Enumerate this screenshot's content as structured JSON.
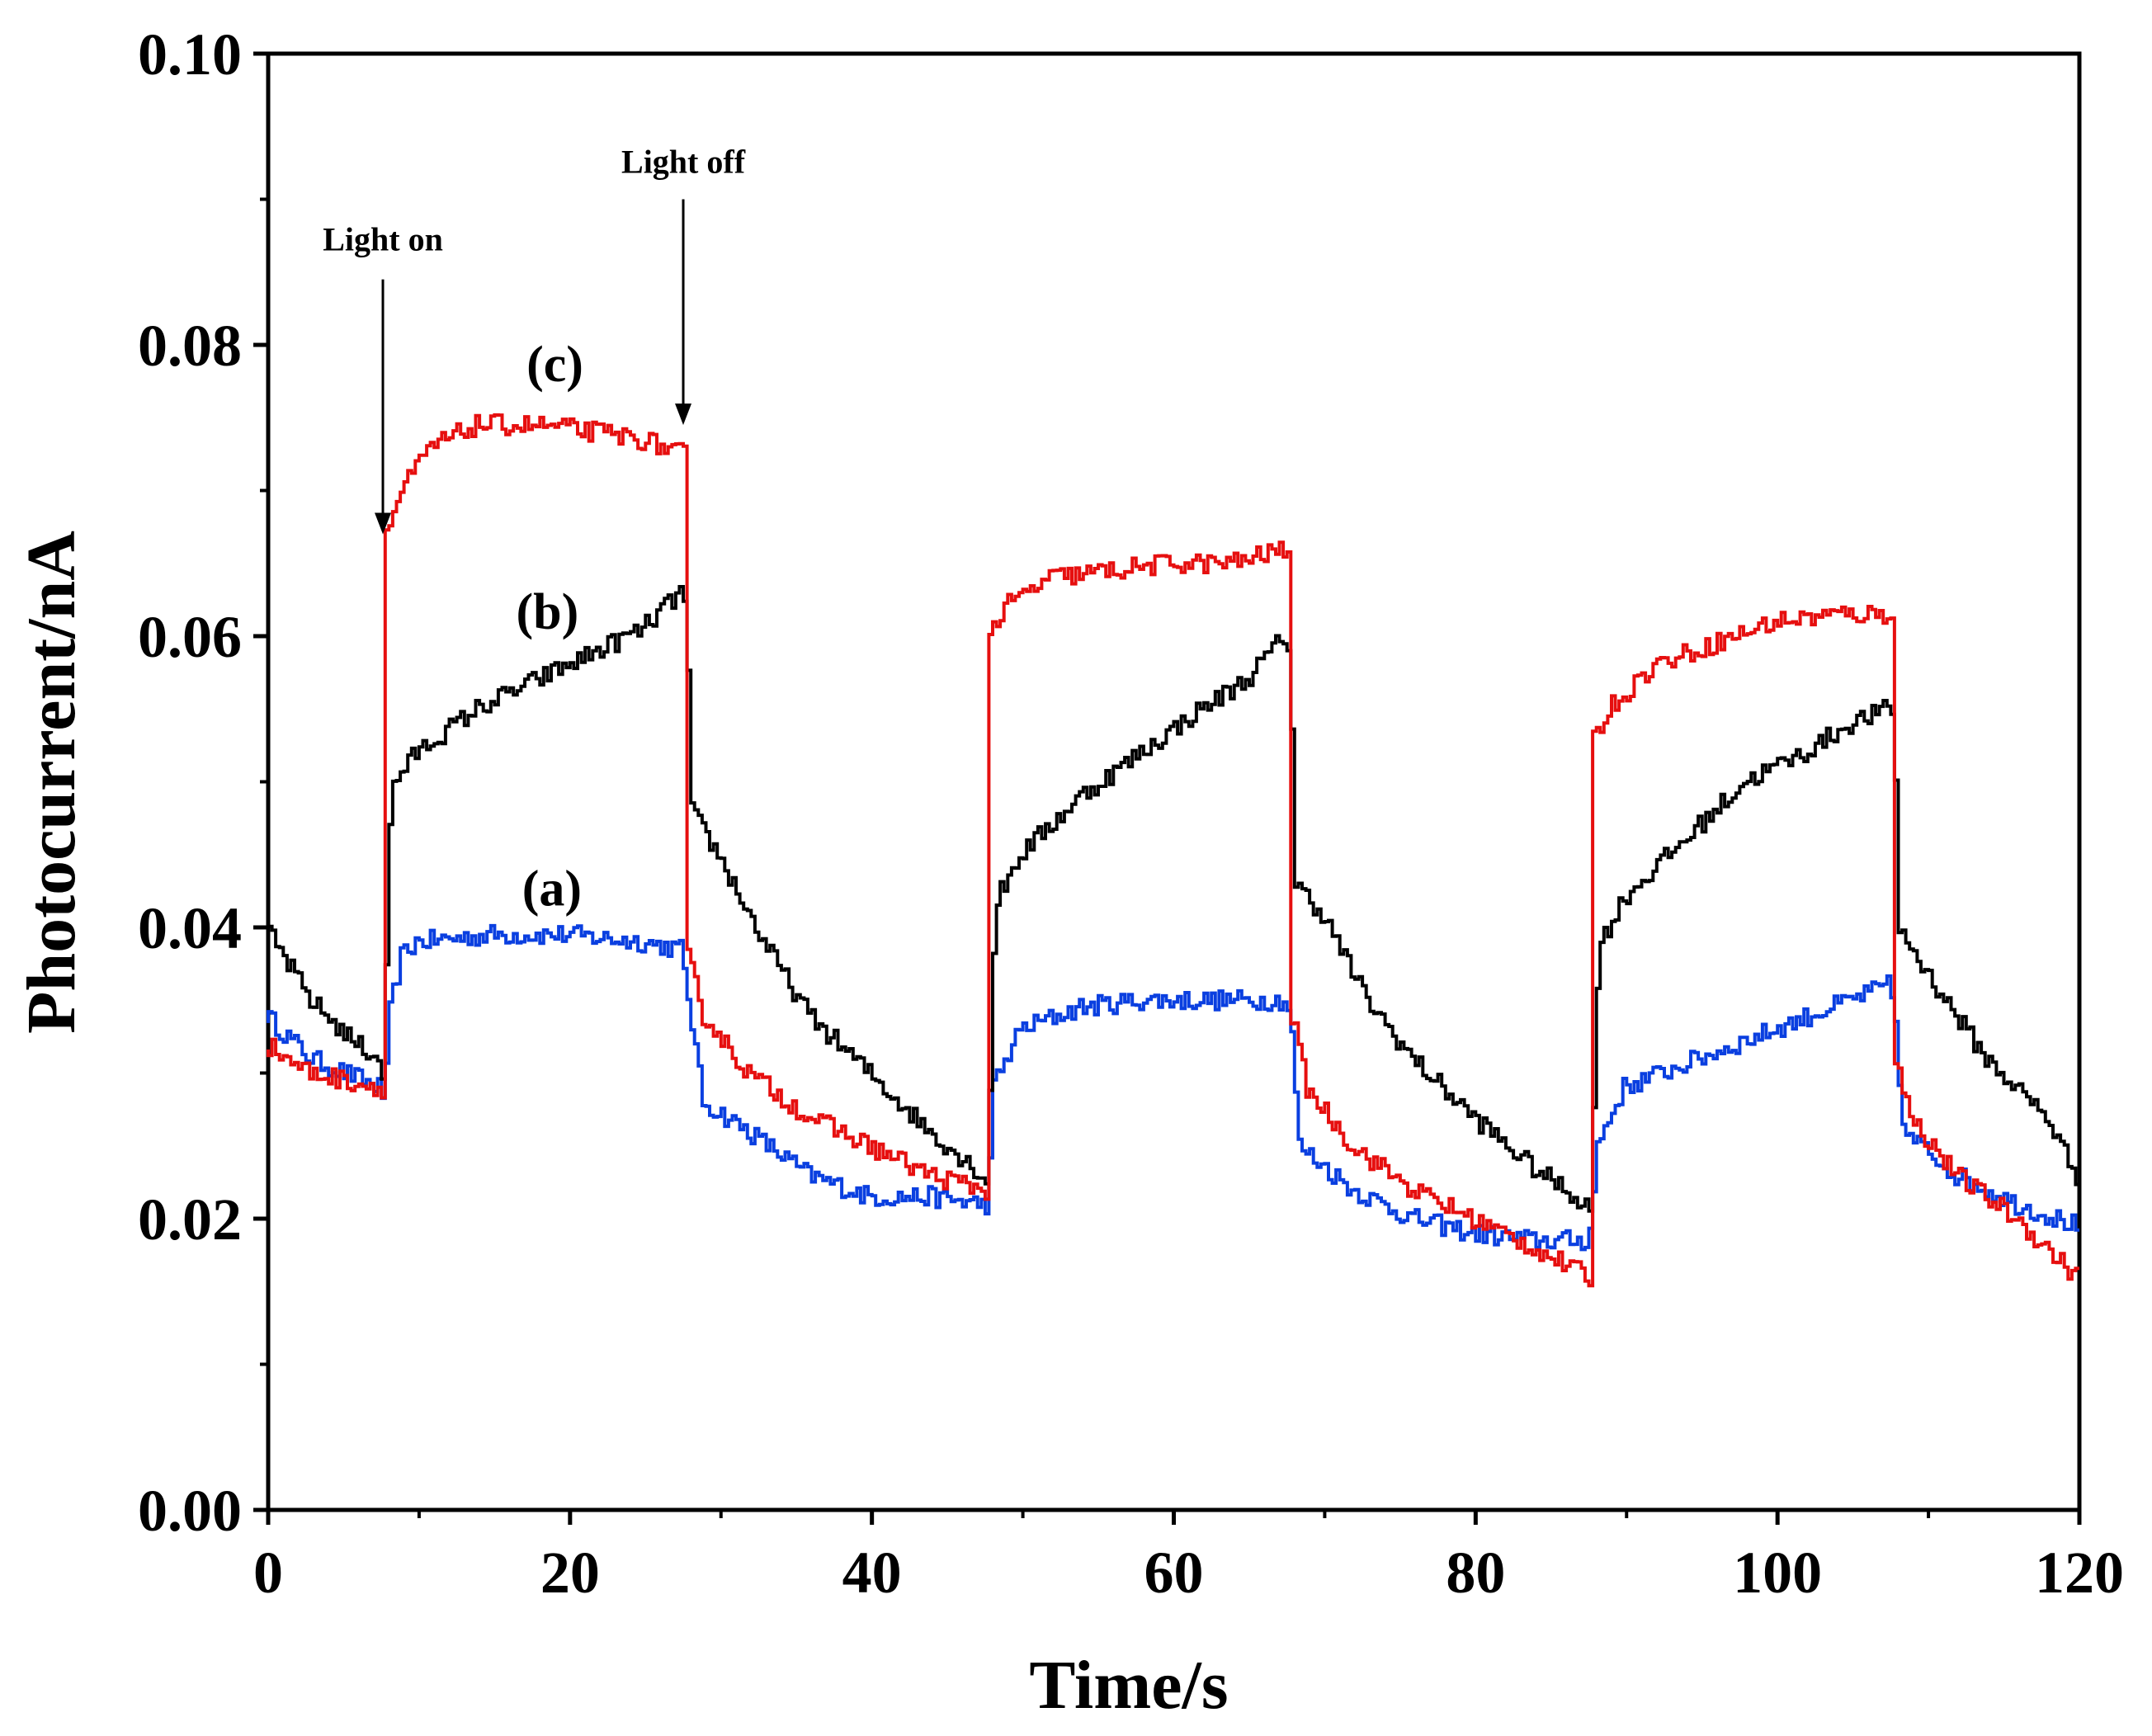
{
  "chart_data": {
    "type": "line",
    "title": "",
    "xlabel": "Time/s",
    "ylabel": "Photocurrent/nA",
    "xlim": [
      0,
      120
    ],
    "ylim": [
      0,
      0.1
    ],
    "xticks": [
      0,
      20,
      40,
      60,
      80,
      100,
      120
    ],
    "xtick_labels": [
      "0",
      "20",
      "40",
      "60",
      "80",
      "100",
      "120"
    ],
    "yticks": [
      0,
      0.02,
      0.04,
      0.06,
      0.08,
      0.1
    ],
    "ytick_labels": [
      "0.00",
      "0.02",
      "0.04",
      "0.06",
      "0.08",
      "0.10"
    ],
    "grid": false,
    "series": [
      {
        "name": "(a)",
        "color": "#0a3fe0",
        "points": [
          [
            0,
            0.034
          ],
          [
            3,
            0.031
          ],
          [
            7.6,
            0.029
          ],
          [
            7.9,
            0.028
          ],
          [
            8.2,
            0.034
          ],
          [
            9,
            0.038
          ],
          [
            10,
            0.039
          ],
          [
            15,
            0.0395
          ],
          [
            20,
            0.0395
          ],
          [
            25,
            0.039
          ],
          [
            27.5,
            0.0385
          ],
          [
            27.9,
            0.036
          ],
          [
            29,
            0.028
          ],
          [
            32,
            0.026
          ],
          [
            36,
            0.023
          ],
          [
            40,
            0.0215
          ],
          [
            44,
            0.0215
          ],
          [
            47.5,
            0.021
          ],
          [
            47.9,
            0.021
          ],
          [
            48.2,
            0.029
          ],
          [
            50,
            0.033
          ],
          [
            54,
            0.0345
          ],
          [
            58,
            0.035
          ],
          [
            62,
            0.035
          ],
          [
            67.5,
            0.035
          ],
          [
            67.9,
            0.034
          ],
          [
            68.5,
            0.025
          ],
          [
            72,
            0.022
          ],
          [
            76,
            0.02
          ],
          [
            80,
            0.019
          ],
          [
            84,
            0.0185
          ],
          [
            87.5,
            0.0185
          ],
          [
            87.9,
            0.02
          ],
          [
            88.2,
            0.025
          ],
          [
            90,
            0.029
          ],
          [
            95,
            0.031
          ],
          [
            100,
            0.033
          ],
          [
            105,
            0.035
          ],
          [
            107.5,
            0.036
          ],
          [
            107.9,
            0.035
          ],
          [
            108.5,
            0.026
          ],
          [
            112,
            0.023
          ],
          [
            116,
            0.021
          ],
          [
            120,
            0.0195
          ]
        ]
      },
      {
        "name": "(b)",
        "color": "#000000",
        "points": [
          [
            0,
            0.04
          ],
          [
            3,
            0.035
          ],
          [
            6,
            0.032
          ],
          [
            7.6,
            0.031
          ],
          [
            7.9,
            0.029
          ],
          [
            8.1,
            0.045
          ],
          [
            8.5,
            0.05
          ],
          [
            10,
            0.052
          ],
          [
            14,
            0.055
          ],
          [
            18,
            0.057
          ],
          [
            22,
            0.059
          ],
          [
            25,
            0.0605
          ],
          [
            27.5,
            0.063
          ],
          [
            27.9,
            0.062
          ],
          [
            28.2,
            0.048
          ],
          [
            30,
            0.045
          ],
          [
            33,
            0.039
          ],
          [
            36,
            0.034
          ],
          [
            40,
            0.03
          ],
          [
            44,
            0.026
          ],
          [
            47.5,
            0.023
          ],
          [
            47.9,
            0.022
          ],
          [
            48.1,
            0.036
          ],
          [
            48.5,
            0.042
          ],
          [
            50,
            0.045
          ],
          [
            54,
            0.049
          ],
          [
            58,
            0.052
          ],
          [
            62,
            0.055
          ],
          [
            65,
            0.057
          ],
          [
            67.5,
            0.06
          ],
          [
            67.9,
            0.059
          ],
          [
            68.2,
            0.043
          ],
          [
            70,
            0.041
          ],
          [
            73,
            0.035
          ],
          [
            76,
            0.031
          ],
          [
            80,
            0.027
          ],
          [
            84,
            0.0235
          ],
          [
            87.5,
            0.021
          ],
          [
            87.9,
            0.02
          ],
          [
            88.1,
            0.035
          ],
          [
            88.5,
            0.039
          ],
          [
            90,
            0.042
          ],
          [
            94,
            0.046
          ],
          [
            98,
            0.05
          ],
          [
            102,
            0.052
          ],
          [
            105,
            0.054
          ],
          [
            107.5,
            0.055
          ],
          [
            107.9,
            0.055
          ],
          [
            108.2,
            0.04
          ],
          [
            110,
            0.037
          ],
          [
            114,
            0.031
          ],
          [
            118,
            0.027
          ],
          [
            120,
            0.023
          ]
        ]
      },
      {
        "name": "(c)",
        "color": "#e60f0f",
        "points": [
          [
            0,
            0.032
          ],
          [
            3,
            0.03
          ],
          [
            7.6,
            0.029
          ],
          [
            7.9,
            0.029
          ],
          [
            8,
            0.067
          ],
          [
            9,
            0.07
          ],
          [
            11,
            0.073
          ],
          [
            14,
            0.0745
          ],
          [
            18,
            0.0745
          ],
          [
            22,
            0.074
          ],
          [
            25,
            0.0735
          ],
          [
            27.6,
            0.0725
          ],
          [
            27.9,
            0.0725
          ],
          [
            28,
            0.038
          ],
          [
            29,
            0.034
          ],
          [
            32,
            0.03
          ],
          [
            36,
            0.027
          ],
          [
            40,
            0.025
          ],
          [
            44,
            0.023
          ],
          [
            47.6,
            0.022
          ],
          [
            47.9,
            0.022
          ],
          [
            48,
            0.06
          ],
          [
            49,
            0.062
          ],
          [
            52,
            0.064
          ],
          [
            56,
            0.0645
          ],
          [
            60,
            0.065
          ],
          [
            64,
            0.065
          ],
          [
            67.6,
            0.066
          ],
          [
            67.9,
            0.066
          ],
          [
            68,
            0.034
          ],
          [
            69,
            0.029
          ],
          [
            72,
            0.025
          ],
          [
            76,
            0.022
          ],
          [
            80,
            0.02
          ],
          [
            84,
            0.018
          ],
          [
            87.6,
            0.016
          ],
          [
            87.9,
            0.016
          ],
          [
            88,
            0.053
          ],
          [
            89,
            0.055
          ],
          [
            92,
            0.058
          ],
          [
            96,
            0.0595
          ],
          [
            100,
            0.061
          ],
          [
            104,
            0.0615
          ],
          [
            107.6,
            0.0615
          ],
          [
            107.9,
            0.062
          ],
          [
            108,
            0.031
          ],
          [
            109,
            0.027
          ],
          [
            112,
            0.023
          ],
          [
            116,
            0.02
          ],
          [
            120,
            0.016
          ]
        ]
      }
    ],
    "curve_labels": [
      {
        "text": "(c)",
        "x": 19,
        "y": 0.0775
      },
      {
        "text": "(b)",
        "x": 18.5,
        "y": 0.0605
      },
      {
        "text": "(a)",
        "x": 18.8,
        "y": 0.0415
      }
    ],
    "annotations": [
      {
        "text": "Light on",
        "x": 7.6,
        "y": 0.0865,
        "arrow_from": [
          7.6,
          0.0845
        ],
        "arrow_to": [
          7.6,
          0.067
        ]
      },
      {
        "text": "Light off",
        "x": 27.5,
        "y": 0.0918,
        "arrow_from": [
          27.5,
          0.09
        ],
        "arrow_to": [
          27.5,
          0.0745
        ]
      }
    ]
  }
}
